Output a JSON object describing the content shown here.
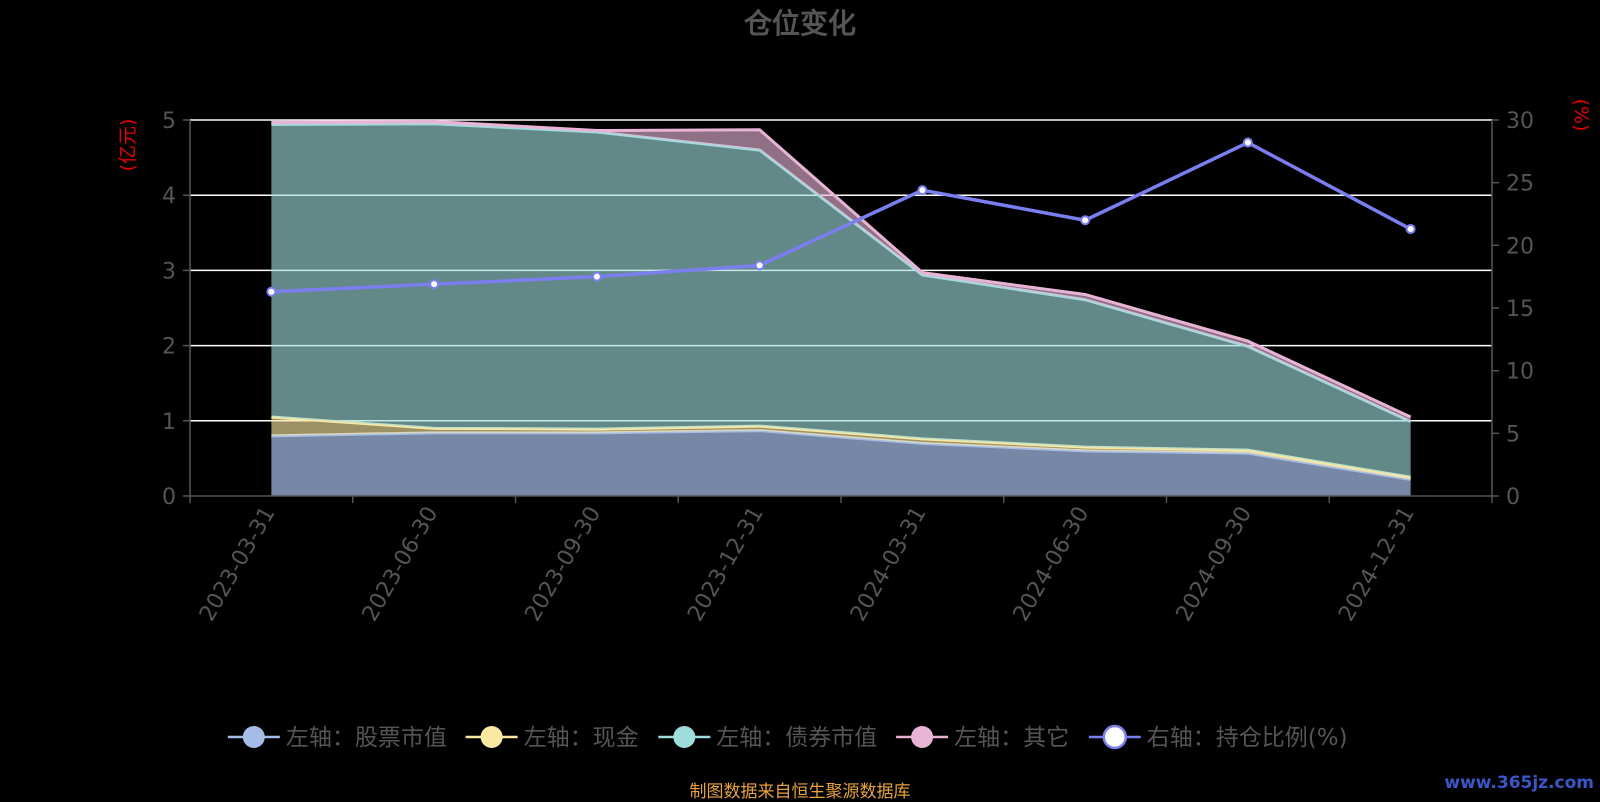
{
  "chart_data": {
    "type": "area",
    "title": "仓位变化",
    "x": [
      "2023-03-31",
      "2023-06-30",
      "2023-09-30",
      "2023-12-31",
      "2024-03-31",
      "2024-06-30",
      "2024-09-30",
      "2024-12-31"
    ],
    "left_axis": {
      "label": "(亿元)",
      "ylim": [
        0,
        5
      ],
      "ticks": [
        0,
        1,
        2,
        3,
        4,
        5
      ]
    },
    "right_axis": {
      "label": "(%)",
      "ylim": [
        0,
        30
      ],
      "ticks": [
        0,
        5,
        10,
        15,
        20,
        25,
        30
      ]
    },
    "stacked": true,
    "series": [
      {
        "name": "左轴：股票市值",
        "axis": "left",
        "kind": "area",
        "color": "#a5bde6",
        "values": [
          0.8,
          0.84,
          0.84,
          0.87,
          0.7,
          0.6,
          0.57,
          0.22
        ]
      },
      {
        "name": "左轴：现金",
        "axis": "left",
        "kind": "area",
        "color": "#fbe9a3",
        "values": [
          0.25,
          0.06,
          0.05,
          0.06,
          0.06,
          0.05,
          0.04,
          0.03
        ]
      },
      {
        "name": "左轴：债券市值",
        "axis": "left",
        "kind": "area",
        "color": "#9fdcdc",
        "values": [
          3.89,
          4.05,
          3.95,
          3.67,
          2.18,
          1.96,
          1.38,
          0.74
        ]
      },
      {
        "name": "左轴：其它",
        "axis": "left",
        "kind": "area",
        "color": "#e8b4d6",
        "values": [
          0.03,
          0.03,
          0.02,
          0.27,
          0.03,
          0.07,
          0.07,
          0.06
        ]
      },
      {
        "name": "右轴：持仓比例(%)",
        "axis": "right",
        "kind": "line",
        "color": "#7b7ef0",
        "values": [
          16.3,
          16.9,
          17.5,
          18.4,
          24.4,
          22.0,
          28.2,
          21.3
        ]
      }
    ],
    "legend_position": "bottom",
    "grid": true
  },
  "legend_items": [
    {
      "label": "左轴：股票市值",
      "color": "#a5bde6"
    },
    {
      "label": "左轴：现金",
      "color": "#fbe9a3"
    },
    {
      "label": "左轴：债券市值",
      "color": "#9fdcdc"
    },
    {
      "label": "左轴：其它",
      "color": "#e8b4d6"
    },
    {
      "label": "右轴：持仓比例(%)",
      "color": "#ffffff",
      "line_color": "#7b7ef0"
    }
  ],
  "footer": {
    "source": "制图数据来自恒生聚源数据库",
    "watermark": "www.365jz.com"
  },
  "colors": {
    "background": "#000000",
    "axis_label_red": "#e60000",
    "tick_text": "#555555",
    "gridline": "#ffffff",
    "source_text": "#e7a23c"
  }
}
